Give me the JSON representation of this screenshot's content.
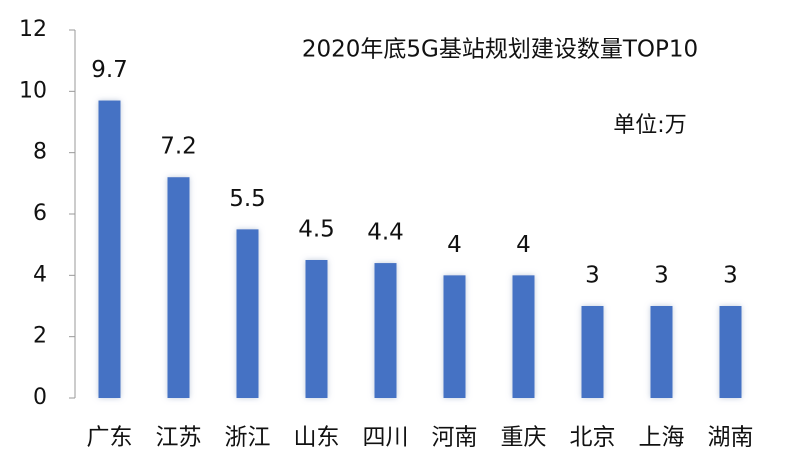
{
  "chart_data": {
    "type": "bar",
    "title": "2020年底5G基站规划建设数量TOP10",
    "unit_label": "单位:万",
    "categories": [
      "广东",
      "江苏",
      "浙江",
      "山东",
      "四川",
      "河南",
      "重庆",
      "北京",
      "上海",
      "湖南"
    ],
    "values": [
      9.7,
      7.2,
      5.5,
      4.5,
      4.4,
      4,
      4,
      3,
      3,
      3
    ],
    "color": "#4472c4",
    "ylim": [
      0,
      12
    ],
    "yticks": [
      0,
      2,
      4,
      6,
      8,
      10,
      12
    ],
    "grid": false
  }
}
